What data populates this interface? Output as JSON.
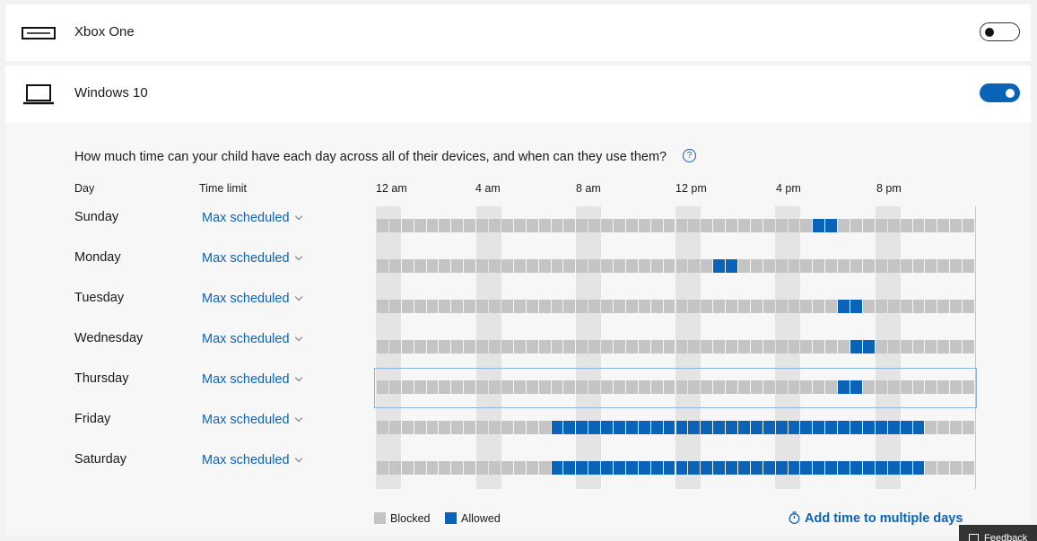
{
  "devices": [
    {
      "name": "Xbox One",
      "icon": "console-icon",
      "enabled": false
    },
    {
      "name": "Windows 10",
      "icon": "laptop-icon",
      "enabled": true
    }
  ],
  "schedule": {
    "question": "How much time can your child have each day across all of their devices, and when can they use them?",
    "help_icon": "?",
    "col_day": "Day",
    "col_time_limit": "Time limit",
    "hour_labels": [
      "12 am",
      "4 am",
      "8 am",
      "12 pm",
      "4 pm",
      "8 pm"
    ],
    "slots_per_day": 48,
    "selected_day": "Thursday",
    "days": [
      {
        "name": "Sunday",
        "limit": "Max scheduled",
        "allowed_half_hours": [
          35,
          36
        ]
      },
      {
        "name": "Monday",
        "limit": "Max scheduled",
        "allowed_half_hours": [
          27,
          28
        ]
      },
      {
        "name": "Tuesday",
        "limit": "Max scheduled",
        "allowed_half_hours": [
          37,
          38
        ]
      },
      {
        "name": "Wednesday",
        "limit": "Max scheduled",
        "allowed_half_hours": [
          38,
          39
        ]
      },
      {
        "name": "Thursday",
        "limit": "Max scheduled",
        "allowed_half_hours": [
          37,
          38
        ]
      },
      {
        "name": "Friday",
        "limit": "Max scheduled",
        "allowed_half_hours": [
          14,
          15,
          16,
          17,
          18,
          19,
          20,
          21,
          22,
          23,
          24,
          25,
          26,
          27,
          28,
          29,
          30,
          31,
          32,
          33,
          34,
          35,
          36,
          37,
          38,
          39,
          40,
          41,
          42,
          43
        ]
      },
      {
        "name": "Saturday",
        "limit": "Max scheduled",
        "allowed_half_hours": [
          14,
          15,
          16,
          17,
          18,
          19,
          20,
          21,
          22,
          23,
          24,
          25,
          26,
          27,
          28,
          29,
          30,
          31,
          32,
          33,
          34,
          35,
          36,
          37,
          38,
          39,
          40,
          41,
          42,
          43
        ]
      }
    ],
    "legend": {
      "blocked": "Blocked",
      "allowed": "Allowed"
    },
    "add_time_label": "Add time to multiple days"
  },
  "colors": {
    "blocked": "#c4c4c4",
    "allowed": "#0b63b8",
    "accent": "#0b63b8"
  },
  "feedback_label": "Feedback"
}
